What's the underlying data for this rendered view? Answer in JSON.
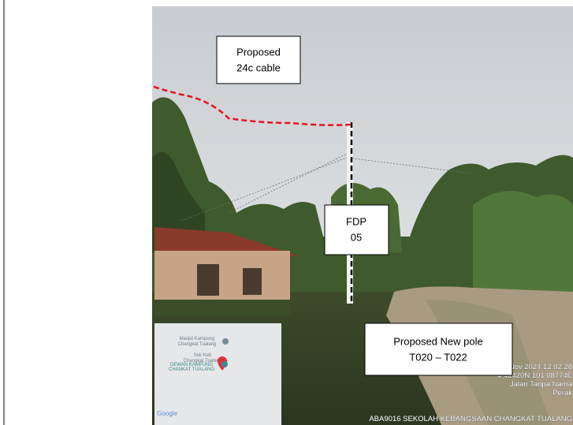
{
  "annotations": {
    "cable": [
      "Proposed",
      "24c cable"
    ],
    "fdp": [
      "FDP",
      "05"
    ],
    "pole": [
      "Proposed New pole",
      "T020 – T022"
    ]
  },
  "timestamp": [
    "8 Nov 2024 12.02.28",
    "4.42420N 101.08774E",
    "Jalan Tanpa Nama",
    "Perak",
    "ABA9016 SEKOLAH KEBANGSAAN CHANGKAT TUALANG"
  ],
  "map": {
    "places": [
      "Masjid Kampung",
      "Changkat Tualang",
      "Sek Keb",
      "Changkat Tualang",
      "DEWAN KAMPUNG",
      "CHANKAT TUALANG"
    ],
    "attribution": "Google"
  }
}
